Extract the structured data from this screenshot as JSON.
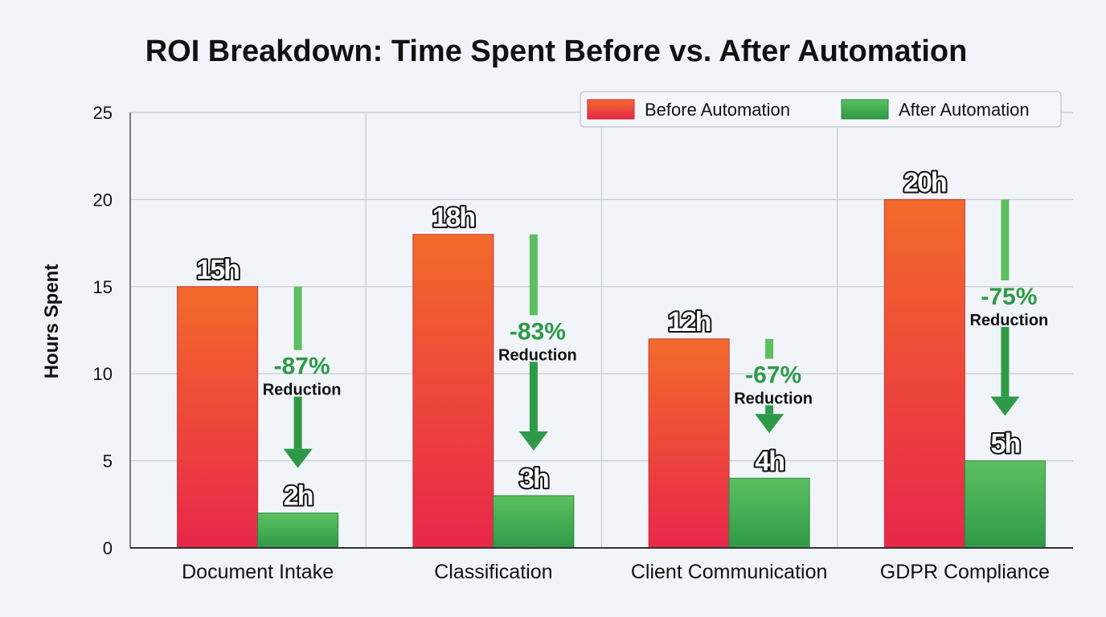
{
  "chart_data": {
    "type": "bar",
    "title": "ROI Breakdown: Time Spent Before vs. After Automation",
    "xlabel": "",
    "ylabel": "Hours Spent",
    "ylim": [
      0,
      25
    ],
    "yticks": [
      0,
      5,
      10,
      15,
      20,
      25
    ],
    "grid": true,
    "legend_position": "top-right",
    "categories": [
      "Document Intake",
      "Classification",
      "Client Communication",
      "GDPR Compliance"
    ],
    "series": [
      {
        "name": "Before Automation",
        "values": [
          15,
          18,
          12,
          20
        ],
        "labels": [
          "15h",
          "18h",
          "12h",
          "20h"
        ],
        "color_top": "#f26b2a",
        "color_bottom": "#e8264a"
      },
      {
        "name": "After Automation",
        "values": [
          2,
          3,
          4,
          5
        ],
        "labels": [
          "2h",
          "3h",
          "4h",
          "5h"
        ],
        "color_top": "#5cc060",
        "color_bottom": "#2e9a48"
      }
    ],
    "annotations": [
      {
        "percent": "-87%",
        "text": "Reduction"
      },
      {
        "percent": "-83%",
        "text": "Reduction"
      },
      {
        "percent": "-67%",
        "text": "Reduction"
      },
      {
        "percent": "-75%",
        "text": "Reduction"
      }
    ],
    "arrow_color": "#2e9a48"
  }
}
